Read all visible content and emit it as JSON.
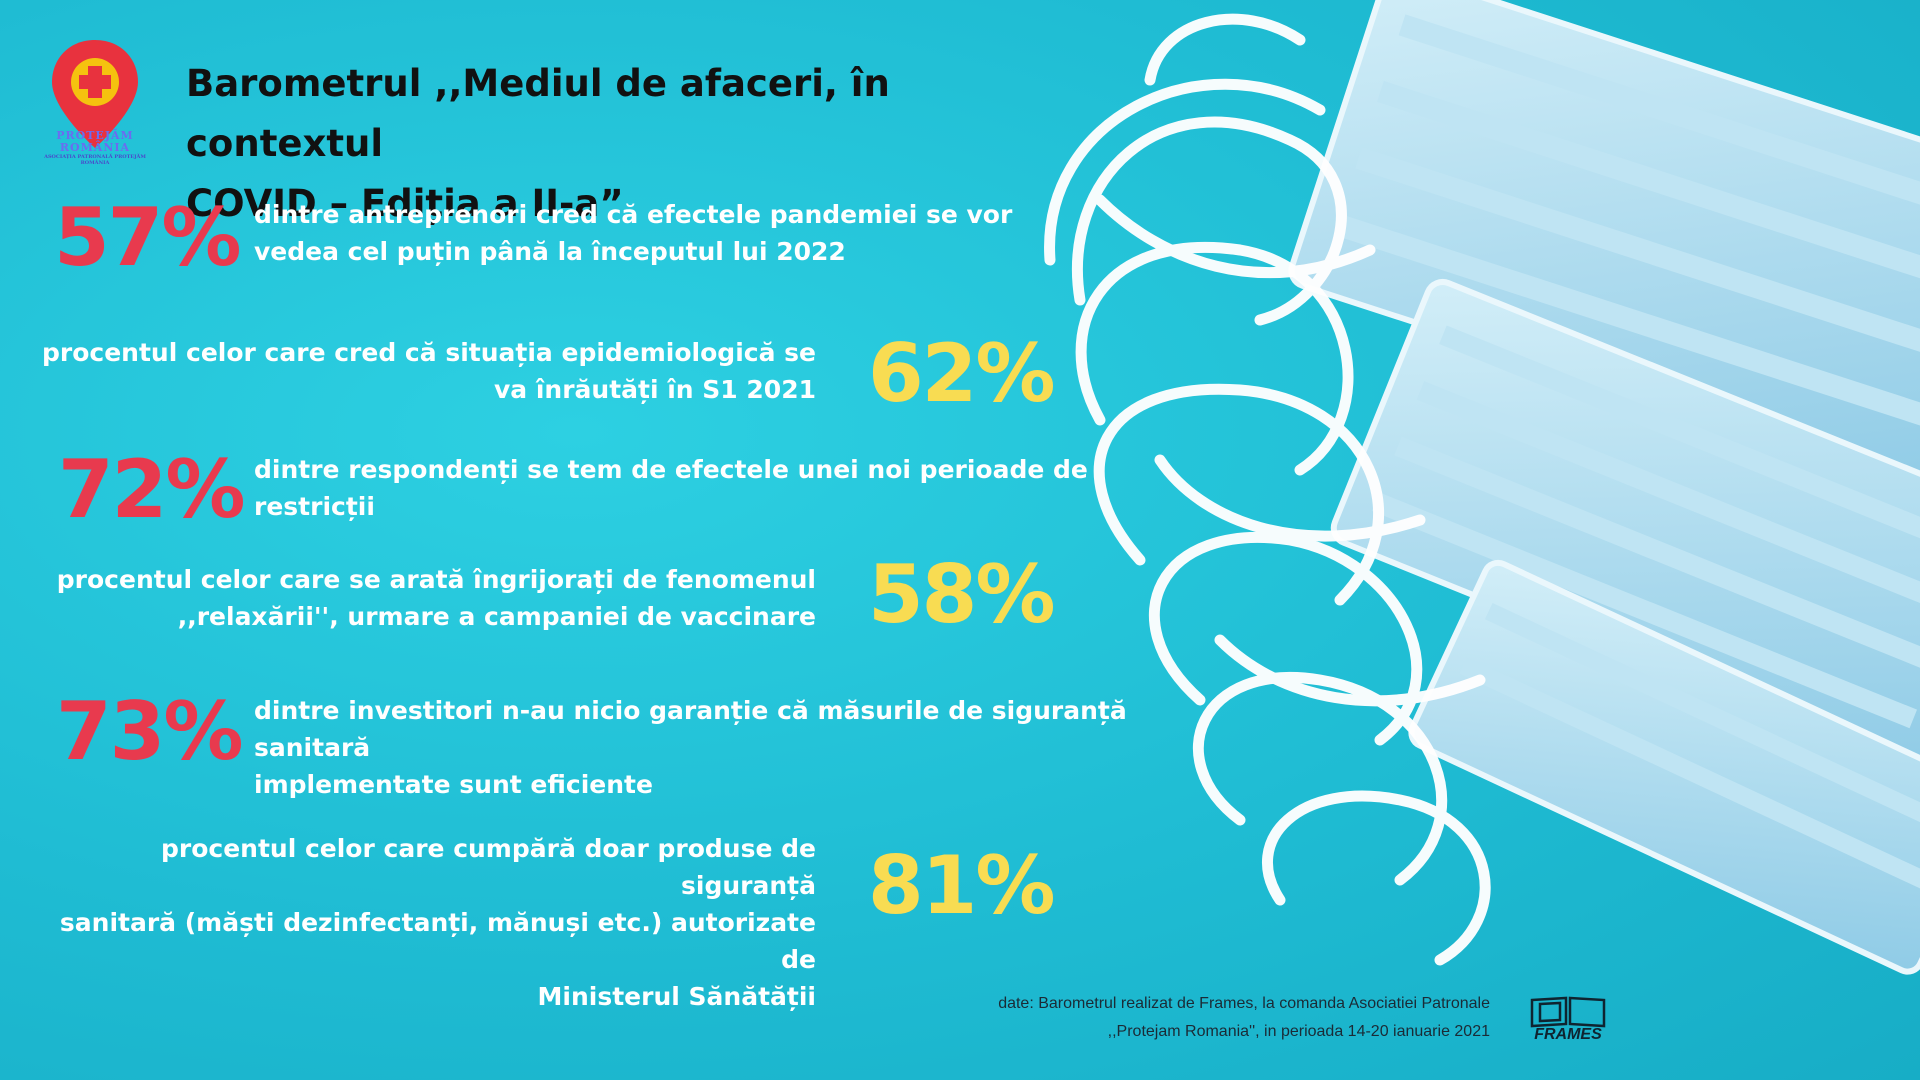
{
  "logo": {
    "line1": "PROTEJĂM",
    "line2": "ROMÂNIA",
    "line3": "ASOCIAȚIA PATRONALĂ PROTEJĂM ROMÂNIA",
    "icon": "map-pin-cross-icon",
    "pin_color": "#e8323e",
    "cross_color": "#f5c20f"
  },
  "title": {
    "line1": "Barometrul ,,Mediul de afaceri, în contextul",
    "line2": "COVID – Ediția a II-a”"
  },
  "stats": [
    {
      "value": "57%",
      "color": "#e83a4e",
      "text_line1": "dintre antreprenori cred că efectele  pandemiei se vor",
      "text_line2": "vedea cel puțin până  la începutul lui 2022"
    },
    {
      "value": "62%",
      "color": "#f8dc52",
      "text_line1": "procentul celor care cred că situația epidemiologică se",
      "text_line2": "va înrăutăți în S1 2021"
    },
    {
      "value": "72%",
      "color": "#e83a4e",
      "text_line1": "dintre respondenți se tem de efectele unei noi perioade de",
      "text_line2": "restricții"
    },
    {
      "value": "58%",
      "color": "#f8dc52",
      "text_line1": "procentul celor care se arată îngrijorați  de fenomenul",
      "text_line2": ",,relaxării'', urmare a campaniei de vaccinare"
    },
    {
      "value": "73%",
      "color": "#e83a4e",
      "text_line1": "dintre investitori n-au nicio garanție că măsurile de siguranță sanitară",
      "text_line2": "implementate sunt eficiente"
    },
    {
      "value": "81%",
      "color": "#f8dc52",
      "text_line1": "procentul celor care  cumpără doar  produse de siguranță",
      "text_line2": "sanitară (măști dezinfectanți, mănuși etc.) autorizate de",
      "text_line3": "Ministerul Sănătății"
    }
  ],
  "source": {
    "line1": "date:  Barometrul realizat de Frames, la comanda Asociatiei Patronale",
    "line2": ",,Protejam Romania'',  in perioada 14-20 ianuarie 2021"
  },
  "frames_logo": {
    "label": "FRAMES",
    "icon": "frames-logo-icon"
  },
  "colors": {
    "background": "#22c1d6",
    "mask": "#a9dcf0",
    "strap": "#ffffff"
  }
}
